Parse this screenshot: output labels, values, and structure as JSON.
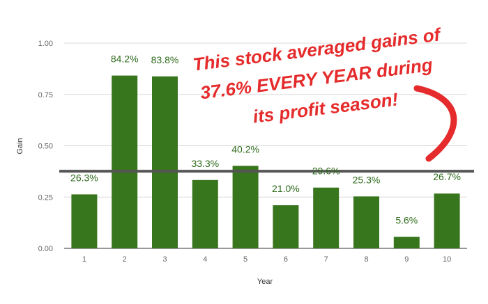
{
  "chart_data": {
    "type": "bar",
    "categories": [
      "1",
      "2",
      "3",
      "4",
      "5",
      "6",
      "7",
      "8",
      "9",
      "10"
    ],
    "values": [
      0.263,
      0.842,
      0.838,
      0.333,
      0.402,
      0.21,
      0.296,
      0.253,
      0.056,
      0.267
    ],
    "data_labels": [
      "26.3%",
      "84.2%",
      "83.8%",
      "33.3%",
      "40.2%",
      "21.0%",
      "29.6%",
      "25.3%",
      "5.6%",
      "26.7%"
    ],
    "xlabel": "Year",
    "ylabel": "Gain",
    "ylim": [
      0,
      1.0
    ],
    "y_ticks": [
      "0.00",
      "0.25",
      "0.50",
      "0.75",
      "1.00"
    ],
    "y_tick_values": [
      0,
      0.25,
      0.5,
      0.75,
      1.0
    ],
    "grid": true,
    "bar_color": "#38761d",
    "label_color": "#2e6b1b",
    "average_line": {
      "value": 0.376,
      "color": "#555555"
    },
    "annotation": {
      "lines": [
        "This stock averaged gains of",
        "37.6% EVERY YEAR during",
        "its profit season!"
      ],
      "color": "#e52b2b"
    }
  }
}
